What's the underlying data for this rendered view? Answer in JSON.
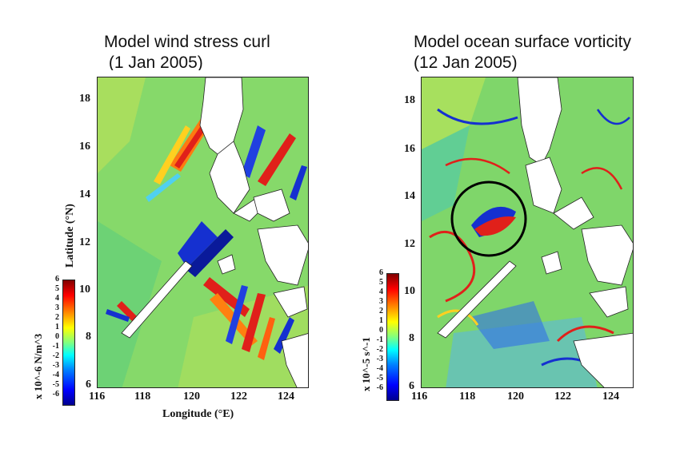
{
  "left_panel": {
    "title": "Model wind stress curl\n (1 Jan 2005)",
    "lat_ticks": [
      "18",
      "16",
      "14",
      "12",
      "10",
      "8",
      "6"
    ],
    "lon_ticks": [
      "116",
      "118",
      "120",
      "122",
      "124"
    ],
    "ylabel": "Latitude (°N)",
    "xlabel": "Longitude (°E)",
    "colorbar_label": "x 10^-6 N/m^3",
    "colorbar_ticks": [
      "6",
      "5",
      "4",
      "3",
      "2",
      "1",
      "0",
      "-1",
      "-2",
      "-3",
      "-4",
      "-5",
      "-6"
    ]
  },
  "right_panel": {
    "title": "Model ocean surface vorticity\n(12 Jan 2005)",
    "lat_ticks": [
      "18",
      "16",
      "14",
      "12",
      "10",
      "8",
      "6"
    ],
    "lon_ticks": [
      "116",
      "118",
      "120",
      "122",
      "124"
    ],
    "colorbar_label": "x 10^-5 s^-1",
    "colorbar_ticks": [
      "6",
      "5",
      "4",
      "3",
      "2",
      "1",
      "0",
      "-1",
      "-2",
      "-3",
      "-4",
      "-5",
      "-6"
    ],
    "annotation": "circle-highlight"
  },
  "colors": {
    "field_base": "#7fd66a",
    "land": "#ffffff",
    "positive": "#e0201a",
    "negative": "#1530d0",
    "colormap": "jet"
  }
}
